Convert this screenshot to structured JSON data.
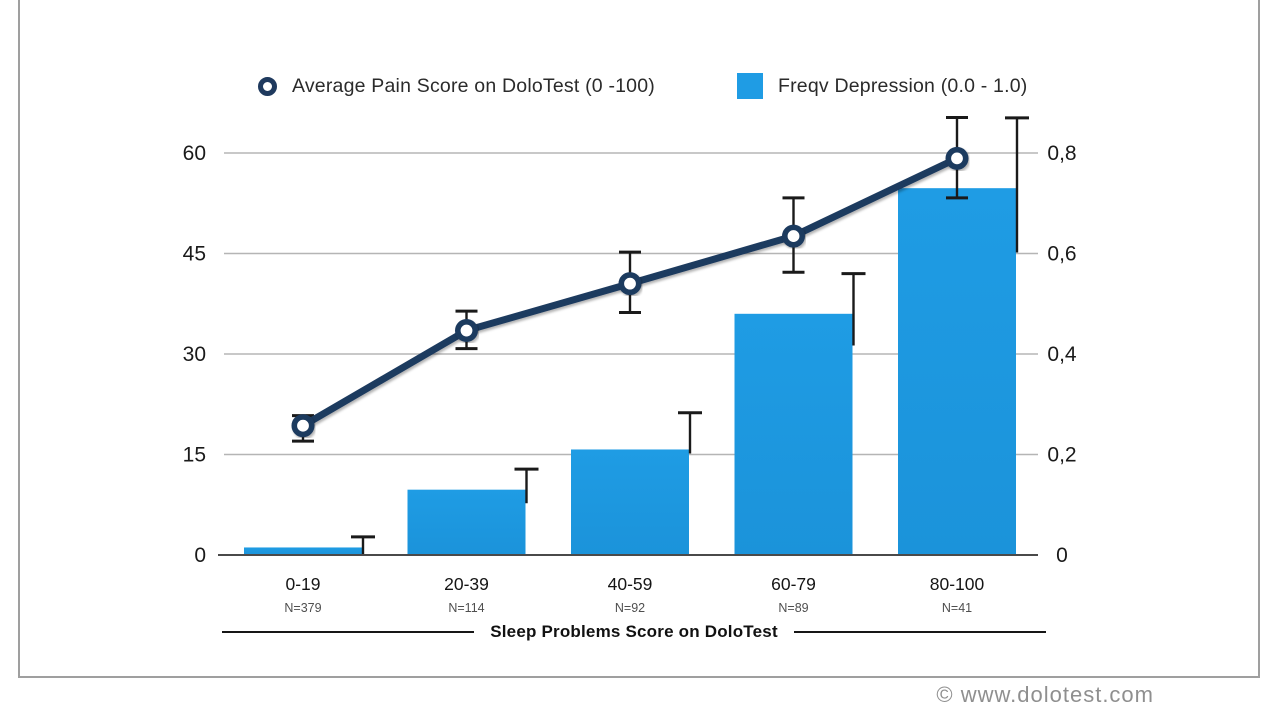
{
  "legend": {
    "line_label": "Average Pain Score on DoloTest (0 -100)",
    "bar_label": "Freqv Depression (0.0 - 1.0)"
  },
  "footer": {
    "copyright": "© www.dolotest.com"
  },
  "colors": {
    "bar_fill": "#1f9ce4",
    "bar_fill_dark": "#1b93da",
    "line": "#1f3a5e",
    "error": "#1a1a1a",
    "grid": "#b5b5b5",
    "axis": "#4a4a4a",
    "tick_text": "#1a1a1a",
    "category_text": "#151515",
    "n_text": "#4f4f4f"
  },
  "chart_data": {
    "type": "bar",
    "subtype": "dual-axis bar + line with error bars",
    "title": "",
    "xlabel": "Sleep Problems Score on DoloTest",
    "categories": [
      "0-19",
      "20-39",
      "40-59",
      "60-79",
      "80-100"
    ],
    "n_labels": [
      "N=379",
      "N=114",
      "N=92",
      "N=89",
      "N=41"
    ],
    "left_axis": {
      "label": "Average Pain Score on DoloTest (0 -100)",
      "tick_labels": [
        "0",
        "15",
        "30",
        "45",
        "60"
      ],
      "tick_values": [
        0,
        15,
        30,
        45,
        60
      ],
      "range": [
        0,
        66
      ]
    },
    "right_axis": {
      "label": "Freqv Depression (0.0 - 1.0)",
      "tick_labels": [
        "0",
        "0,2",
        "0,4",
        "0,6",
        "0,8"
      ],
      "tick_values": [
        0,
        0.2,
        0.4,
        0.6,
        0.8
      ],
      "range": [
        0,
        0.88
      ]
    },
    "grid": true,
    "legend_position": "top",
    "series": [
      {
        "name": "Average Pain Score on DoloTest (0 -100)",
        "type": "line",
        "axis": "left",
        "values": [
          19.3,
          33.5,
          40.5,
          47.6,
          59.2
        ],
        "err_low": [
          17.0,
          30.8,
          36.2,
          42.2,
          53.3
        ],
        "err_high": [
          20.8,
          36.4,
          45.2,
          53.3,
          65.3
        ]
      },
      {
        "name": "Freqv Depression (0.0 - 1.0)",
        "type": "bar",
        "axis": "right",
        "values": [
          0.015,
          0.13,
          0.21,
          0.48,
          0.73
        ],
        "err_low": [
          0.002,
          0.103,
          0.202,
          0.417,
          0.602
        ],
        "err_high": [
          0.036,
          0.171,
          0.283,
          0.56,
          0.87
        ]
      }
    ]
  }
}
